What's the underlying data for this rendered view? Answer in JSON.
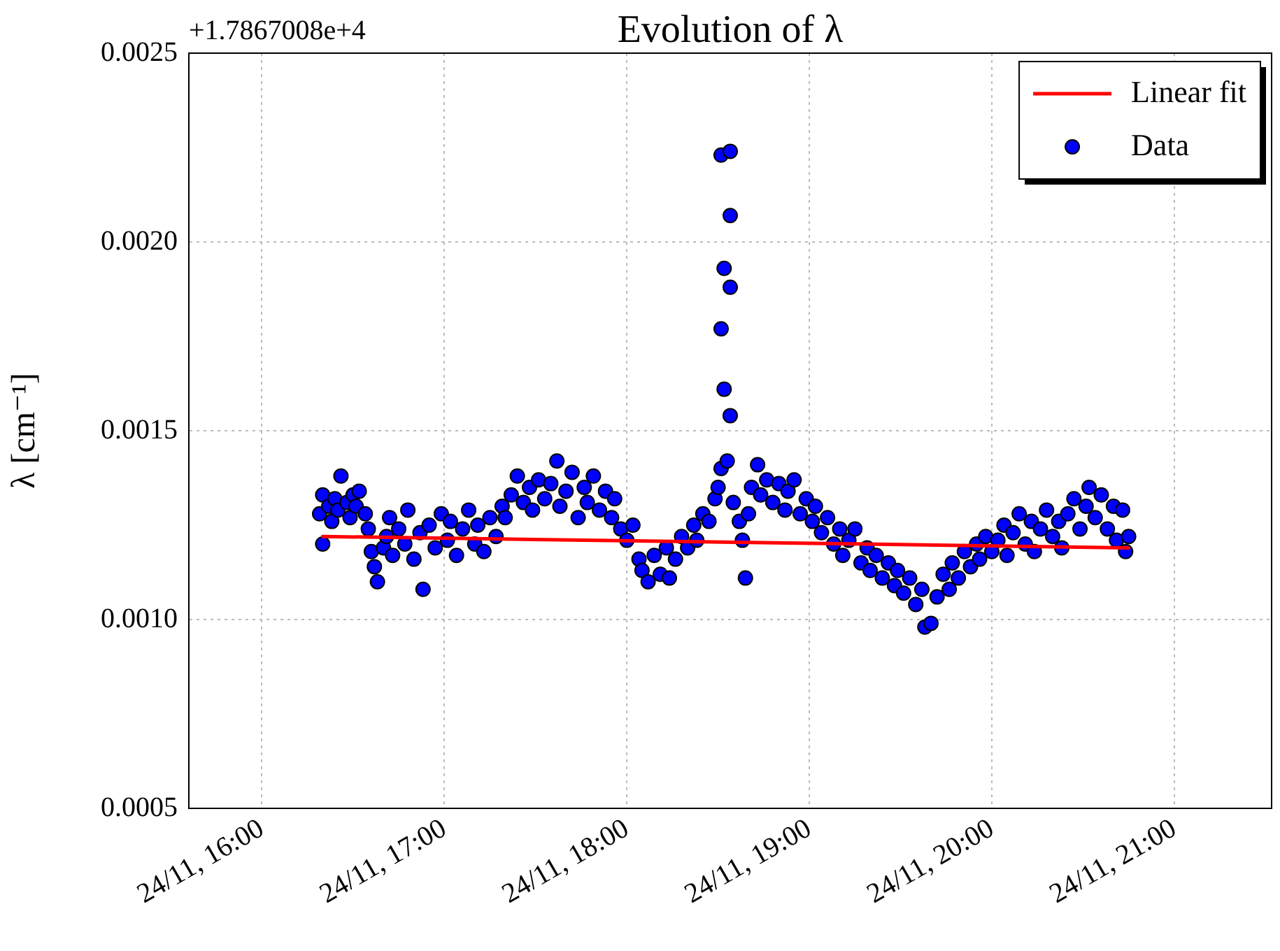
{
  "chart_data": {
    "type": "scatter",
    "title": "Evolution of λ",
    "ylabel": "λ [cm⁻¹]",
    "annotations": [
      "+1.7867008e+4"
    ],
    "xlim": [
      "--11-24T15:36",
      "--11-24T21:32"
    ],
    "xticks": [
      {
        "value": "--11-24T16:00",
        "label": "24/11, 16:00"
      },
      {
        "value": "--11-24T17:00",
        "label": "24/11, 17:00"
      },
      {
        "value": "--11-24T18:00",
        "label": "24/11, 18:00"
      },
      {
        "value": "--11-24T19:00",
        "label": "24/11, 19:00"
      },
      {
        "value": "--11-24T20:00",
        "label": "24/11, 20:00"
      },
      {
        "value": "--11-24T21:00",
        "label": "24/11, 21:00"
      }
    ],
    "ylim": [
      0.0005,
      0.0025
    ],
    "yticks": [
      {
        "value": 0.0005,
        "label": "0.0005"
      },
      {
        "value": 0.001,
        "label": "0.0010"
      },
      {
        "value": 0.0015,
        "label": "0.0015"
      },
      {
        "value": 0.002,
        "label": "0.0020"
      },
      {
        "value": 0.0025,
        "label": "0.0025"
      }
    ],
    "grid": true,
    "legend": "top right",
    "marker": "circle",
    "series": [
      {
        "name": "Linear fit",
        "type": "line",
        "color": "#ff0000",
        "line_style": "solid",
        "marker": "none",
        "x": [
          "--11-24T16:20",
          "--11-24T20:45"
        ],
        "values": [
          0.00122,
          0.00119
        ]
      },
      {
        "name": "Data",
        "type": "scatter",
        "color": "#0000ff",
        "x": [
          "--11-24T16:19",
          "--11-24T16:20",
          "--11-24T16:20",
          "--11-24T16:22",
          "--11-24T16:23",
          "--11-24T16:24",
          "--11-24T16:25",
          "--11-24T16:26",
          "--11-24T16:28",
          "--11-24T16:29",
          "--11-24T16:30",
          "--11-24T16:31",
          "--11-24T16:32",
          "--11-24T16:34",
          "--11-24T16:35",
          "--11-24T16:36",
          "--11-24T16:37",
          "--11-24T16:38",
          "--11-24T16:40",
          "--11-24T16:41",
          "--11-24T16:42",
          "--11-24T16:43",
          "--11-24T16:45",
          "--11-24T16:47",
          "--11-24T16:48",
          "--11-24T16:50",
          "--11-24T16:52",
          "--11-24T16:53",
          "--11-24T16:55",
          "--11-24T16:57",
          "--11-24T16:59",
          "--11-24T17:01",
          "--11-24T17:02",
          "--11-24T17:04",
          "--11-24T17:06",
          "--11-24T17:08",
          "--11-24T17:10",
          "--11-24T17:11",
          "--11-24T17:13",
          "--11-24T17:15",
          "--11-24T17:17",
          "--11-24T17:19",
          "--11-24T17:20",
          "--11-24T17:22",
          "--11-24T17:24",
          "--11-24T17:26",
          "--11-24T17:28",
          "--11-24T17:29",
          "--11-24T17:31",
          "--11-24T17:33",
          "--11-24T17:35",
          "--11-24T17:37",
          "--11-24T17:38",
          "--11-24T17:40",
          "--11-24T17:42",
          "--11-24T17:44",
          "--11-24T17:46",
          "--11-24T17:47",
          "--11-24T17:49",
          "--11-24T17:51",
          "--11-24T17:53",
          "--11-24T17:55",
          "--11-24T17:56",
          "--11-24T17:58",
          "--11-24T18:00",
          "--11-24T18:02",
          "--11-24T18:04",
          "--11-24T18:05",
          "--11-24T18:07",
          "--11-24T18:09",
          "--11-24T18:11",
          "--11-24T18:13",
          "--11-24T18:14",
          "--11-24T18:16",
          "--11-24T18:18",
          "--11-24T18:20",
          "--11-24T18:22",
          "--11-24T18:23",
          "--11-24T18:25",
          "--11-24T18:27",
          "--11-24T18:29",
          "--11-24T18:30",
          "--11-24T18:31",
          "--11-24T18:31",
          "--11-24T18:32",
          "--11-24T18:32",
          "--11-24T18:31",
          "--11-24T18:34",
          "--11-24T18:34",
          "--11-24T18:34",
          "--11-24T18:34",
          "--11-24T18:33",
          "--11-24T18:35",
          "--11-24T18:37",
          "--11-24T18:38",
          "--11-24T18:39",
          "--11-24T18:40",
          "--11-24T18:41",
          "--11-24T18:43",
          "--11-24T18:44",
          "--11-24T18:46",
          "--11-24T18:48",
          "--11-24T18:50",
          "--11-24T18:52",
          "--11-24T18:53",
          "--11-24T18:55",
          "--11-24T18:57",
          "--11-24T18:59",
          "--11-24T19:01",
          "--11-24T19:02",
          "--11-24T19:04",
          "--11-24T19:06",
          "--11-24T19:08",
          "--11-24T19:10",
          "--11-24T19:11",
          "--11-24T19:13",
          "--11-24T19:15",
          "--11-24T19:17",
          "--11-24T19:19",
          "--11-24T19:20",
          "--11-24T19:22",
          "--11-24T19:24",
          "--11-24T19:26",
          "--11-24T19:28",
          "--11-24T19:29",
          "--11-24T19:31",
          "--11-24T19:33",
          "--11-24T19:35",
          "--11-24T19:37",
          "--11-24T19:38",
          "--11-24T19:40",
          "--11-24T19:42",
          "--11-24T19:44",
          "--11-24T19:46",
          "--11-24T19:47",
          "--11-24T19:49",
          "--11-24T19:51",
          "--11-24T19:53",
          "--11-24T19:55",
          "--11-24T19:56",
          "--11-24T19:58",
          "--11-24T20:00",
          "--11-24T20:02",
          "--11-24T20:04",
          "--11-24T20:05",
          "--11-24T20:07",
          "--11-24T20:09",
          "--11-24T20:11",
          "--11-24T20:13",
          "--11-24T20:14",
          "--11-24T20:16",
          "--11-24T20:18",
          "--11-24T20:20",
          "--11-24T20:22",
          "--11-24T20:23",
          "--11-24T20:25",
          "--11-24T20:27",
          "--11-24T20:29",
          "--11-24T20:31",
          "--11-24T20:32",
          "--11-24T20:34",
          "--11-24T20:36",
          "--11-24T20:38",
          "--11-24T20:40",
          "--11-24T20:41",
          "--11-24T20:43",
          "--11-24T20:44",
          "--11-24T20:45"
        ],
        "values": [
          0.00128,
          0.00133,
          0.0012,
          0.0013,
          0.00126,
          0.00132,
          0.00129,
          0.00138,
          0.00131,
          0.00127,
          0.00133,
          0.0013,
          0.00134,
          0.00128,
          0.00124,
          0.00118,
          0.00114,
          0.0011,
          0.00119,
          0.00122,
          0.00127,
          0.00117,
          0.00124,
          0.0012,
          0.00129,
          0.00116,
          0.00123,
          0.00108,
          0.00125,
          0.00119,
          0.00128,
          0.00121,
          0.00126,
          0.00117,
          0.00124,
          0.00129,
          0.0012,
          0.00125,
          0.00118,
          0.00127,
          0.00122,
          0.0013,
          0.00127,
          0.00133,
          0.00138,
          0.00131,
          0.00135,
          0.00129,
          0.00137,
          0.00132,
          0.00136,
          0.00142,
          0.0013,
          0.00134,
          0.00139,
          0.00127,
          0.00135,
          0.00131,
          0.00138,
          0.00129,
          0.00134,
          0.00127,
          0.00132,
          0.00124,
          0.00121,
          0.00125,
          0.00116,
          0.00113,
          0.0011,
          0.00117,
          0.00112,
          0.00119,
          0.00111,
          0.00116,
          0.00122,
          0.00119,
          0.00125,
          0.00121,
          0.00128,
          0.00126,
          0.00132,
          0.00135,
          0.0014,
          0.00223,
          0.00193,
          0.00161,
          0.00177,
          0.00207,
          0.00224,
          0.00188,
          0.00154,
          0.00142,
          0.00131,
          0.00126,
          0.00121,
          0.00111,
          0.00128,
          0.00135,
          0.00141,
          0.00133,
          0.00137,
          0.00131,
          0.00136,
          0.00129,
          0.00134,
          0.00137,
          0.00128,
          0.00132,
          0.00126,
          0.0013,
          0.00123,
          0.00127,
          0.0012,
          0.00124,
          0.00117,
          0.00121,
          0.00124,
          0.00115,
          0.00119,
          0.00113,
          0.00117,
          0.00111,
          0.00115,
          0.00109,
          0.00113,
          0.00107,
          0.00111,
          0.00104,
          0.00108,
          0.00098,
          0.00099,
          0.00106,
          0.00112,
          0.00108,
          0.00115,
          0.00111,
          0.00118,
          0.00114,
          0.0012,
          0.00116,
          0.00122,
          0.00118,
          0.00121,
          0.00125,
          0.00117,
          0.00123,
          0.00128,
          0.0012,
          0.00126,
          0.00118,
          0.00124,
          0.00129,
          0.00122,
          0.00126,
          0.00119,
          0.00128,
          0.00132,
          0.00124,
          0.0013,
          0.00135,
          0.00127,
          0.00133,
          0.00124,
          0.0013,
          0.00121,
          0.00129,
          0.00118,
          0.00122
        ]
      }
    ]
  }
}
